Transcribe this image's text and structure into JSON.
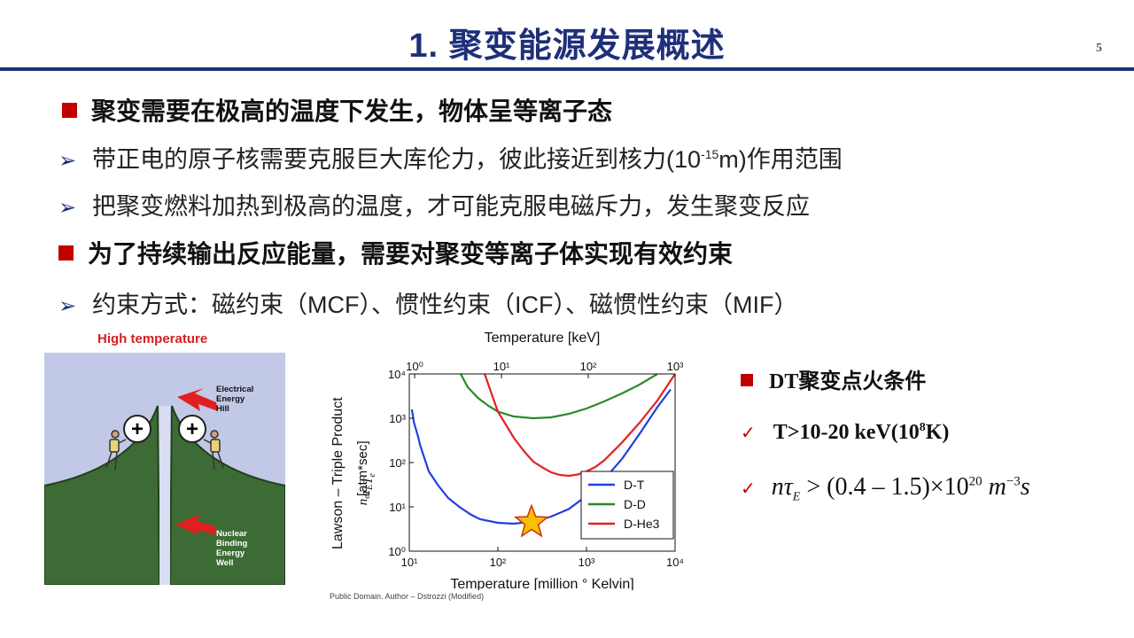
{
  "slide": {
    "title": "1. 聚变能源发展概述",
    "page_number": "5"
  },
  "bullets": {
    "h1": "聚变需要在极高的温度下发生，物体呈等离子态",
    "s1_pre": "带正电的原子核需要克服巨大库伦力，彼此接近到核力(10",
    "s1_sup": "-15",
    "s1_post": "m)作用范围",
    "s2": "把聚变燃料加热到极高的温度，才可能克服电磁斥力，发生聚变反应",
    "h2": "为了持续输出反应能量，需要对聚变等离子体实现有效约束",
    "s3": "约束方式：磁约束（MCF）、惯性约束（ICF）、磁惯性约束（MIF）"
  },
  "illustration": {
    "caption": "High temperature",
    "label_top": [
      "Electrical",
      "Energy",
      "Hill"
    ],
    "label_bottom": [
      "Nuclear",
      "Binding",
      "Energy",
      "Well"
    ],
    "plus": "+"
  },
  "figure_credit": "Public Domain. Author – Dstrozzi (Modified)",
  "chart_data": {
    "type": "line",
    "xlabel": "Temperature [million ° Kelvin]",
    "x2label": "Temperature [keV]",
    "ylabel": "Lawson – Triple Product",
    "ylabel_units": "[atm*sec]",
    "x_ticks": [
      "10¹",
      "10²",
      "10³",
      "10⁴"
    ],
    "x2_ticks": [
      "10⁰",
      "10¹",
      "10²",
      "10³"
    ],
    "y_ticks": [
      "10⁰",
      "10¹",
      "10²",
      "10³",
      "10⁴"
    ],
    "xlog": [
      1,
      4
    ],
    "ylog": [
      0,
      4
    ],
    "scale": "log-log",
    "series": [
      {
        "name": "D-T",
        "color": "#1f3fe0",
        "points": [
          [
            10.7,
            3.2
          ],
          [
            11.3,
            2.9
          ],
          [
            12.6,
            2.58
          ],
          [
            13.2,
            2.4
          ],
          [
            16.6,
            1.8
          ],
          [
            20.9,
            1.5
          ],
          [
            27.5,
            1.2
          ],
          [
            37.2,
            0.99
          ],
          [
            50.1,
            0.82
          ],
          [
            63.1,
            0.72
          ],
          [
            100,
            0.64
          ],
          [
            151,
            0.62
          ],
          [
            251,
            0.67
          ],
          [
            398,
            0.78
          ],
          [
            631,
            0.95
          ],
          [
            1000,
            1.25
          ],
          [
            1585,
            1.62
          ],
          [
            2512,
            2.08
          ],
          [
            3981,
            2.65
          ],
          [
            6310,
            3.25
          ],
          [
            8910,
            3.65
          ]
        ]
      },
      {
        "name": "D-D",
        "color": "#2a8a2a",
        "points": [
          [
            38,
            4.0
          ],
          [
            45.7,
            3.7
          ],
          [
            60.3,
            3.45
          ],
          [
            79.4,
            3.27
          ],
          [
            100,
            3.15
          ],
          [
            151,
            3.04
          ],
          [
            251,
            3.0
          ],
          [
            398,
            3.02
          ],
          [
            631,
            3.1
          ],
          [
            1000,
            3.22
          ],
          [
            1585,
            3.38
          ],
          [
            2512,
            3.56
          ],
          [
            3981,
            3.76
          ],
          [
            5012,
            3.88
          ],
          [
            6310,
            4.0
          ]
        ]
      },
      {
        "name": "D-He3",
        "color": "#e62020",
        "points": [
          [
            71,
            4.0
          ],
          [
            83.2,
            3.6
          ],
          [
            100,
            3.15
          ],
          [
            151,
            2.56
          ],
          [
            200,
            2.24
          ],
          [
            251,
            2.02
          ],
          [
            331,
            1.87
          ],
          [
            398,
            1.78
          ],
          [
            501,
            1.72
          ],
          [
            631,
            1.7
          ],
          [
            794,
            1.73
          ],
          [
            1000,
            1.8
          ],
          [
            1259,
            1.9
          ],
          [
            1585,
            2.05
          ],
          [
            2512,
            2.45
          ],
          [
            3981,
            2.9
          ],
          [
            5012,
            3.15
          ],
          [
            6310,
            3.4
          ],
          [
            7943,
            3.7
          ],
          [
            10000,
            4.0
          ]
        ]
      }
    ],
    "annotation": {
      "type": "star",
      "x": 240,
      "y": 0.65
    },
    "legend": "bottom-right"
  },
  "right_panel": {
    "heading": "DT聚变点火条件",
    "check_mark": "✓",
    "cond1_pre": "T>10-20 keV(10",
    "cond1_sup": "8",
    "cond1_post": "K)",
    "f_n": "n",
    "f_tau": "τ",
    "f_sub": "E",
    "f_mid": " > (0.4 – 1.5)×10",
    "f_sup1": "20",
    "f_m": " m",
    "f_sup2": "−3",
    "f_s": "s"
  },
  "colors": {
    "title": "#1f3079",
    "bullet_red": "#c00000",
    "sky": "#c2c9e7",
    "ground": "#3d6b35"
  }
}
